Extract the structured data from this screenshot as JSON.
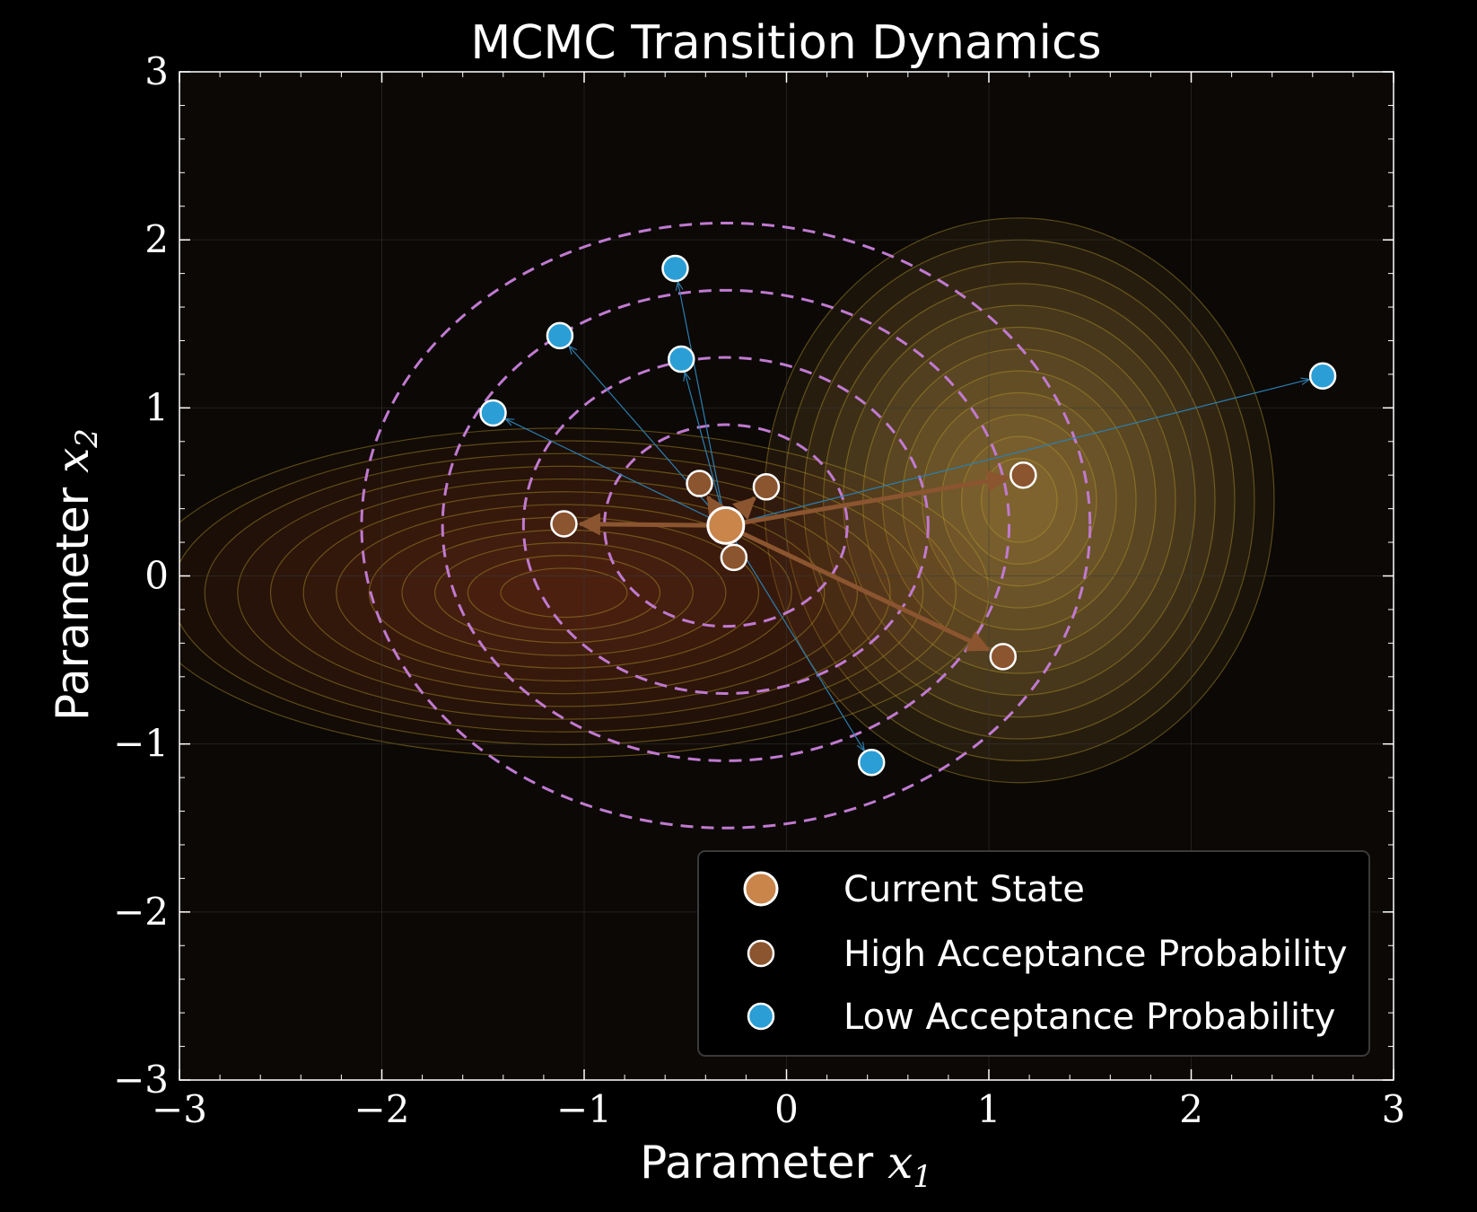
{
  "chart_data": {
    "type": "scatter",
    "title": "MCMC Transition Dynamics",
    "xlabel_text": "Parameter ",
    "xlabel_var": "x",
    "xlabel_sub": "1",
    "ylabel_text": "Parameter ",
    "ylabel_var": "x",
    "ylabel_sub": "2",
    "xlim": [
      -3,
      3
    ],
    "ylim": [
      -3,
      3
    ],
    "xticks": [
      -3,
      -2,
      -1,
      0,
      1,
      2,
      3
    ],
    "yticks": [
      -3,
      -2,
      -1,
      0,
      1,
      2,
      3
    ],
    "xtick_labels": [
      "−3",
      "−2",
      "−1",
      "0",
      "1",
      "2",
      "3"
    ],
    "ytick_labels": [
      "−3",
      "−2",
      "−1",
      "0",
      "1",
      "2",
      "3"
    ],
    "grid": true,
    "legend_position": "bottom-right",
    "density_modes": [
      {
        "center": [
          1.15,
          0.45
        ],
        "sx": 0.45,
        "sy": 0.6,
        "color": "#d9a45c"
      },
      {
        "center": [
          -1.1,
          -0.1
        ],
        "sx": 0.75,
        "sy": 0.35,
        "color": "#7a3f1e"
      }
    ],
    "proposal_rings": {
      "center": [
        -0.3,
        0.3
      ],
      "radii": [
        0.6,
        1.0,
        1.4,
        1.8
      ],
      "color": "#c07ad0"
    },
    "current_state": {
      "x": -0.3,
      "y": 0.3
    },
    "high_acceptance": [
      {
        "x": 1.17,
        "y": 0.6
      },
      {
        "x": -1.1,
        "y": 0.31
      },
      {
        "x": 1.07,
        "y": -0.48
      },
      {
        "x": -0.43,
        "y": 0.55
      },
      {
        "x": -0.1,
        "y": 0.53
      },
      {
        "x": -0.26,
        "y": 0.11
      }
    ],
    "low_acceptance": [
      {
        "x": -0.55,
        "y": 1.83
      },
      {
        "x": -1.12,
        "y": 1.43
      },
      {
        "x": -0.52,
        "y": 1.29
      },
      {
        "x": -1.45,
        "y": 0.97
      },
      {
        "x": 2.65,
        "y": 1.19
      },
      {
        "x": 0.42,
        "y": -1.11
      }
    ],
    "legend": [
      {
        "label": "Current State",
        "kind": "current"
      },
      {
        "label": "High Acceptance Probability",
        "kind": "high"
      },
      {
        "label": "Low Acceptance Probability",
        "kind": "low"
      }
    ],
    "colors": {
      "current": "#c9854a",
      "high": "#8b5530",
      "low": "#2b9ed6",
      "arrow_high": "#8b5530",
      "arrow_low": "#2b7fb0",
      "background": "#0b0805"
    }
  }
}
